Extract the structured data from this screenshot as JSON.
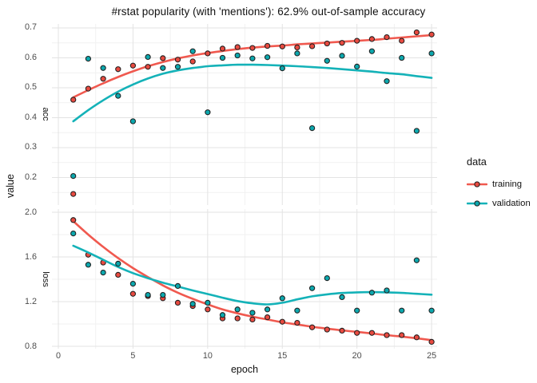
{
  "title": "#rstat popularity (with 'mentions'): 62.9% out-of-sample accuracy",
  "axes": {
    "x_title": "epoch",
    "y_title": "value",
    "xlim": [
      -0.43,
      25.37
    ],
    "x_major_ticks": [
      0,
      5,
      10,
      15,
      20,
      25
    ],
    "x_minor_ticks": [
      2.5,
      7.5,
      12.5,
      17.5,
      22.5
    ]
  },
  "legend": {
    "title": "data",
    "entries": [
      {
        "label": "training",
        "series": "training"
      },
      {
        "label": "validation",
        "series": "validation"
      }
    ]
  },
  "colors": {
    "training_line": "#f0594f",
    "training_point": "#e84a40",
    "validation_line": "#14b2b8",
    "validation_point": "#0ca8ae",
    "point_outline": "#1f1f1f",
    "grid_major": "#e3e3e3",
    "grid_minor": "#f1f1f1",
    "tick_text": "#4d4d4d",
    "text": "#111111"
  },
  "chart_data": [
    {
      "type": "scatter",
      "facet": "acc",
      "ylim": [
        0.108,
        0.7133
      ],
      "y_major_ticks": [
        0.7,
        0.6,
        0.5,
        0.4,
        0.3,
        0.2
      ],
      "y_minor_ticks": [
        0.65,
        0.55,
        0.45,
        0.35,
        0.25,
        0.15
      ],
      "series": [
        {
          "name": "training",
          "points": [
            [
              1,
              0.46
            ],
            [
              1,
              0.145
            ],
            [
              2,
              0.497
            ],
            [
              3,
              0.53
            ],
            [
              4,
              0.562
            ],
            [
              5,
              0.574
            ],
            [
              6,
              0.57
            ],
            [
              7,
              0.599
            ],
            [
              8,
              0.594
            ],
            [
              9,
              0.588
            ],
            [
              10,
              0.615
            ],
            [
              11,
              0.631
            ],
            [
              12,
              0.636
            ],
            [
              13,
              0.633
            ],
            [
              14,
              0.64
            ],
            [
              15,
              0.638
            ],
            [
              16,
              0.635
            ],
            [
              17,
              0.639
            ],
            [
              18,
              0.648
            ],
            [
              19,
              0.65
            ],
            [
              20,
              0.657
            ],
            [
              21,
              0.663
            ],
            [
              22,
              0.669
            ],
            [
              23,
              0.657
            ],
            [
              24,
              0.685
            ],
            [
              25,
              0.678
            ]
          ],
          "smooth": [
            0.468,
            0.492,
            0.515,
            0.536,
            0.555,
            0.572,
            0.586,
            0.598,
            0.608,
            0.616,
            0.623,
            0.629,
            0.634,
            0.638,
            0.641,
            0.645,
            0.648,
            0.651,
            0.654,
            0.657,
            0.66,
            0.664,
            0.668,
            0.672,
            0.676
          ]
        },
        {
          "name": "validation",
          "points": [
            [
              1,
              0.205
            ],
            [
              2,
              0.597
            ],
            [
              3,
              0.566
            ],
            [
              4,
              0.473
            ],
            [
              5,
              0.388
            ],
            [
              6,
              0.603
            ],
            [
              7,
              0.566
            ],
            [
              8,
              0.57
            ],
            [
              9,
              0.622
            ],
            [
              10,
              0.418
            ],
            [
              11,
              0.6
            ],
            [
              12,
              0.608
            ],
            [
              13,
              0.598
            ],
            [
              14,
              0.602
            ],
            [
              15,
              0.565
            ],
            [
              16,
              0.615
            ],
            [
              17,
              0.365
            ],
            [
              18,
              0.59
            ],
            [
              19,
              0.607
            ],
            [
              20,
              0.571
            ],
            [
              21,
              0.622
            ],
            [
              22,
              0.522
            ],
            [
              23,
              0.6
            ],
            [
              24,
              0.356
            ],
            [
              25,
              0.615
            ]
          ],
          "smooth": [
            0.388,
            0.425,
            0.458,
            0.487,
            0.511,
            0.531,
            0.547,
            0.558,
            0.566,
            0.572,
            0.575,
            0.577,
            0.577,
            0.576,
            0.574,
            0.572,
            0.569,
            0.566,
            0.562,
            0.558,
            0.554,
            0.549,
            0.545,
            0.539,
            0.533
          ]
        }
      ]
    },
    {
      "type": "scatter",
      "facet": "loss",
      "ylim": [
        0.7786,
        2.0286
      ],
      "y_major_ticks": [
        2.0,
        1.6,
        1.2,
        0.8
      ],
      "y_minor_ticks": [
        1.8,
        1.4,
        1.0
      ],
      "series": [
        {
          "name": "training",
          "points": [
            [
              1,
              1.93
            ],
            [
              2,
              1.62
            ],
            [
              3,
              1.55
            ],
            [
              4,
              1.44
            ],
            [
              5,
              1.27
            ],
            [
              6,
              1.25
            ],
            [
              7,
              1.23
            ],
            [
              8,
              1.19
            ],
            [
              9,
              1.16
            ],
            [
              10,
              1.13
            ],
            [
              11,
              1.05
            ],
            [
              12,
              1.05
            ],
            [
              13,
              1.04
            ],
            [
              14,
              1.06
            ],
            [
              15,
              1.02
            ],
            [
              16,
              1.01
            ],
            [
              17,
              0.97
            ],
            [
              18,
              0.95
            ],
            [
              19,
              0.94
            ],
            [
              20,
              0.92
            ],
            [
              21,
              0.92
            ],
            [
              22,
              0.9
            ],
            [
              23,
              0.9
            ],
            [
              24,
              0.88
            ],
            [
              25,
              0.84
            ]
          ],
          "smooth": [
            1.92,
            1.8,
            1.69,
            1.59,
            1.5,
            1.42,
            1.345,
            1.28,
            1.225,
            1.175,
            1.13,
            1.095,
            1.065,
            1.04,
            1.015,
            0.995,
            0.975,
            0.958,
            0.943,
            0.929,
            0.915,
            0.9,
            0.887,
            0.872,
            0.855
          ]
        },
        {
          "name": "validation",
          "points": [
            [
              1,
              1.81
            ],
            [
              2,
              1.53
            ],
            [
              3,
              1.46
            ],
            [
              4,
              1.54
            ],
            [
              5,
              1.36
            ],
            [
              6,
              1.26
            ],
            [
              7,
              1.26
            ],
            [
              8,
              1.34
            ],
            [
              9,
              1.18
            ],
            [
              10,
              1.19
            ],
            [
              11,
              1.08
            ],
            [
              12,
              1.13
            ],
            [
              13,
              1.1
            ],
            [
              14,
              1.13
            ],
            [
              15,
              1.23
            ],
            [
              16,
              1.12
            ],
            [
              17,
              1.32
            ],
            [
              18,
              1.41
            ],
            [
              19,
              1.24
            ],
            [
              20,
              1.12
            ],
            [
              21,
              1.28
            ],
            [
              22,
              1.3
            ],
            [
              23,
              1.12
            ],
            [
              24,
              1.57
            ],
            [
              25,
              1.12
            ]
          ],
          "smooth": [
            1.7,
            1.64,
            1.575,
            1.51,
            1.455,
            1.41,
            1.37,
            1.335,
            1.3,
            1.268,
            1.235,
            1.205,
            1.185,
            1.175,
            1.19,
            1.22,
            1.247,
            1.265,
            1.277,
            1.283,
            1.285,
            1.283,
            1.278,
            1.27,
            1.262
          ]
        }
      ]
    }
  ]
}
